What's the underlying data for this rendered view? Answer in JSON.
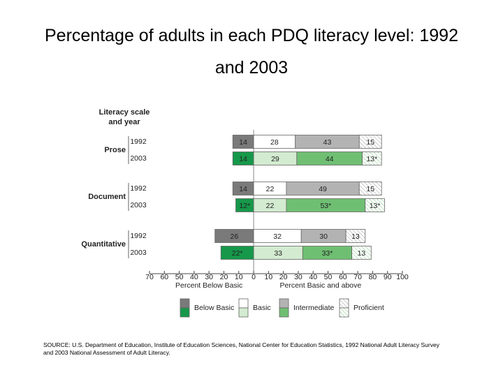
{
  "chart_data": {
    "type": "diverging-stacked-bar",
    "title": "Percentage of adults in each PDQ literacy level: 1992 and 2003",
    "row_header": [
      "Literacy scale",
      "and year"
    ],
    "groups": [
      "Prose",
      "Document",
      "Quantitative"
    ],
    "categories": [
      "1992",
      "2003",
      "1992",
      "2003",
      "1992",
      "2003"
    ],
    "series": [
      {
        "name": "Below Basic",
        "direction": "left",
        "colors": [
          "#7a7a7a",
          "#16984a"
        ],
        "label_colors": [
          "#ffffff",
          "#ffffff"
        ],
        "values": [
          14,
          14,
          14,
          12,
          26,
          22
        ],
        "value_labels": [
          "14",
          "14",
          "14",
          "12*",
          "26",
          "22*"
        ]
      },
      {
        "name": "Basic",
        "direction": "right",
        "colors": [
          "#ffffff",
          "#d3ebd0"
        ],
        "label_colors": [
          "#222222",
          "#222222"
        ],
        "values": [
          28,
          29,
          22,
          22,
          32,
          33
        ],
        "value_labels": [
          "28",
          "29",
          "22",
          "22",
          "32",
          "33"
        ]
      },
      {
        "name": "Intermediate",
        "direction": "right",
        "colors": [
          "#b3b3b3",
          "#6fbf73"
        ],
        "label_colors": [
          "#222222",
          "#222222"
        ],
        "values": [
          43,
          44,
          49,
          53,
          30,
          33
        ],
        "value_labels": [
          "43",
          "44",
          "49",
          "53*",
          "30",
          "33*"
        ]
      },
      {
        "name": "Proficient",
        "direction": "right",
        "colors": [
          "url(#hatch-gray)",
          "url(#hatch-green)"
        ],
        "label_colors": [
          "#222222",
          "#222222"
        ],
        "values": [
          15,
          13,
          15,
          13,
          13,
          13
        ],
        "value_labels": [
          "15",
          "13*",
          "15",
          "13*",
          "13",
          "13"
        ]
      }
    ],
    "xlim": [
      -70,
      100
    ],
    "xticks": [
      {
        "value": -70,
        "label": "70"
      },
      {
        "value": -60,
        "label": "60"
      },
      {
        "value": -50,
        "label": "50"
      },
      {
        "value": -40,
        "label": "40"
      },
      {
        "value": -30,
        "label": "30"
      },
      {
        "value": -20,
        "label": "20"
      },
      {
        "value": -10,
        "label": "10"
      },
      0,
      10,
      20,
      30,
      40,
      50,
      60,
      70,
      80,
      90,
      100
    ],
    "xlabel_left": "Percent Below Basic",
    "xlabel_right": "Percent Basic and above",
    "source": "SOURCE: U.S. Department of Education, Institute of Education Sciences, National Center for Education Statistics, 1992 National Adult Literacy Survey and 2003 National Assessment of Adult Literacy."
  }
}
